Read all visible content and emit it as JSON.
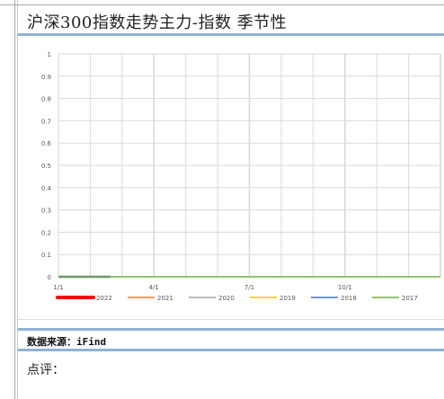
{
  "document": {
    "title": "沪深300指数走势主力-指数  季节性",
    "source_label": "数据来源：iFind",
    "comment_label": "点评："
  },
  "chart_data": {
    "type": "line",
    "title": "",
    "xlabel": "",
    "ylabel": "",
    "ylim": [
      0,
      1
    ],
    "y_ticks": [
      "0",
      "0.1",
      "0.2",
      "0.3",
      "0.4",
      "0.5",
      "0.6",
      "0.7",
      "0.8",
      "0.9",
      "1"
    ],
    "x_ticks": [
      "1/1",
      "4/1",
      "7/1",
      "10/1"
    ],
    "grid": true,
    "legend_position": "bottom",
    "series": [
      {
        "name": "2022",
        "color": "#ff0000",
        "values": [
          0,
          0
        ]
      },
      {
        "name": "2021",
        "color": "#ed7d31",
        "values": []
      },
      {
        "name": "2020",
        "color": "#a5a5a5",
        "values": []
      },
      {
        "name": "2019",
        "color": "#ffc000",
        "values": []
      },
      {
        "name": "2018",
        "color": "#4472c4",
        "values": [
          0,
          0
        ]
      },
      {
        "name": "2017",
        "color": "#70ad47",
        "values": [
          0,
          0
        ]
      }
    ]
  }
}
